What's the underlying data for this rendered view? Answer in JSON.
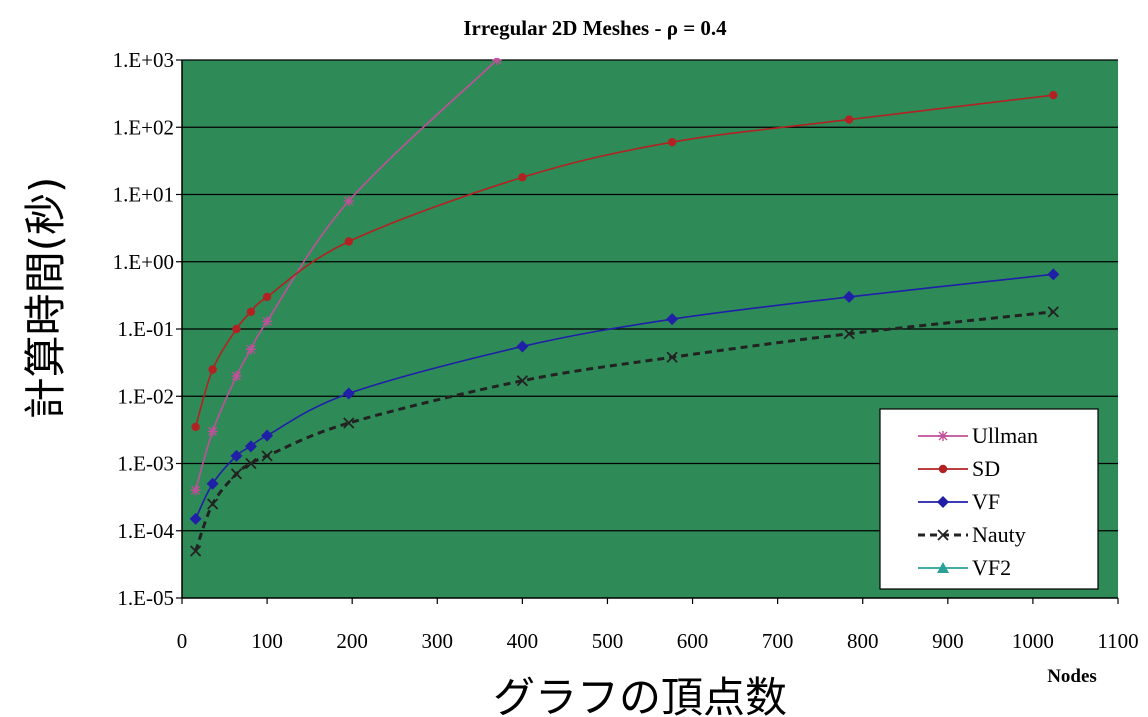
{
  "chart_data": {
    "type": "line",
    "title": "Irregular 2D Meshes - ρ = 0.4",
    "xlabel": "グラフの頂点数",
    "xlabel_unit": "Nodes",
    "ylabel": "計算時間(秒)",
    "y_scale": "log",
    "xlim": [
      0,
      1100
    ],
    "ylim": [
      1e-05,
      1000
    ],
    "x_ticks": [
      "0",
      "100",
      "200",
      "300",
      "400",
      "500",
      "600",
      "700",
      "800",
      "900",
      "1000",
      "1100"
    ],
    "y_ticks": [
      "1.E-05",
      "1.E-04",
      "1.E-03",
      "1.E-02",
      "1.E-01",
      "1.E+00",
      "1.E+01",
      "1.E+02",
      "1.E+03"
    ],
    "grid": true,
    "legend_position": "bottom-right",
    "plot_background": "#2e8b57",
    "series": [
      {
        "name": "Ullman",
        "color": "#c0509a",
        "marker": "star",
        "dash": "solid",
        "x": [
          16,
          36,
          64,
          81,
          100,
          196,
          370
        ],
        "y": [
          0.0004,
          0.003,
          0.02,
          0.05,
          0.13,
          8,
          1000
        ]
      },
      {
        "name": "SD",
        "color": "#b22222",
        "marker": "circle",
        "dash": "solid",
        "x": [
          16,
          36,
          64,
          81,
          100,
          196,
          400,
          576,
          784,
          1024
        ],
        "y": [
          0.0035,
          0.025,
          0.1,
          0.18,
          0.3,
          2,
          18,
          60,
          130,
          300
        ]
      },
      {
        "name": "VF",
        "color": "#1f1fa8",
        "marker": "diamond",
        "dash": "solid",
        "x": [
          16,
          36,
          64,
          81,
          100,
          196,
          400,
          576,
          784,
          1024
        ],
        "y": [
          0.00015,
          0.0005,
          0.0013,
          0.0018,
          0.0026,
          0.011,
          0.055,
          0.14,
          0.3,
          0.65
        ]
      },
      {
        "name": "Nauty",
        "color": "#222222",
        "marker": "x",
        "dash": "dashed",
        "x": [
          16,
          36,
          64,
          81,
          100,
          196,
          400,
          576,
          784,
          1024
        ],
        "y": [
          5e-05,
          0.00025,
          0.0007,
          0.001,
          0.0013,
          0.004,
          0.017,
          0.038,
          0.085,
          0.18
        ]
      },
      {
        "name": "VF2",
        "color": "#2aa198",
        "marker": "triangle",
        "dash": "solid",
        "x": [],
        "y": []
      }
    ]
  }
}
